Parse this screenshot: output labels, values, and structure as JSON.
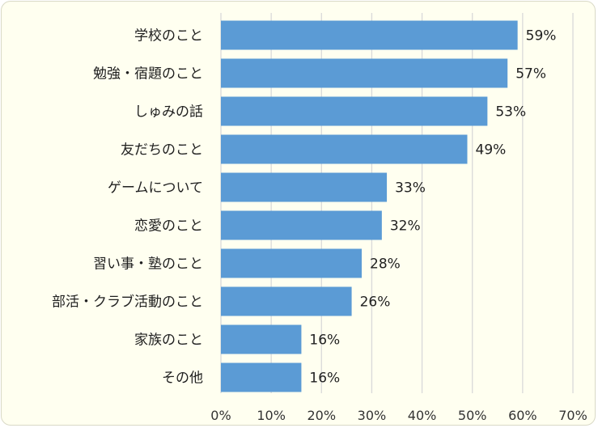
{
  "chart_data": {
    "type": "bar",
    "orientation": "horizontal",
    "categories": [
      "学校のこと",
      "勉強・宿題のこと",
      "しゅみの話",
      "友だちのこと",
      "ゲームについて",
      "恋愛のこと",
      "習い事・塾のこと",
      "部活・クラブ活動のこと",
      "家族のこと",
      "その他"
    ],
    "values": [
      59,
      57,
      53,
      49,
      33,
      32,
      28,
      26,
      16,
      16
    ],
    "value_labels": [
      "59%",
      "57%",
      "53%",
      "49%",
      "33%",
      "32%",
      "28%",
      "26%",
      "16%",
      "16%"
    ],
    "xlim": [
      0,
      70
    ],
    "x_ticks": [
      0,
      10,
      20,
      30,
      40,
      50,
      60,
      70
    ],
    "x_tick_labels": [
      "0%",
      "10%",
      "20%",
      "30%",
      "40%",
      "50%",
      "60%",
      "70%"
    ],
    "title": "",
    "xlabel": "",
    "ylabel": "",
    "grid": "vertical",
    "bar_color": "#5b9bd5",
    "grid_color": "#d9d9d9",
    "background_color": "#fffff0"
  }
}
